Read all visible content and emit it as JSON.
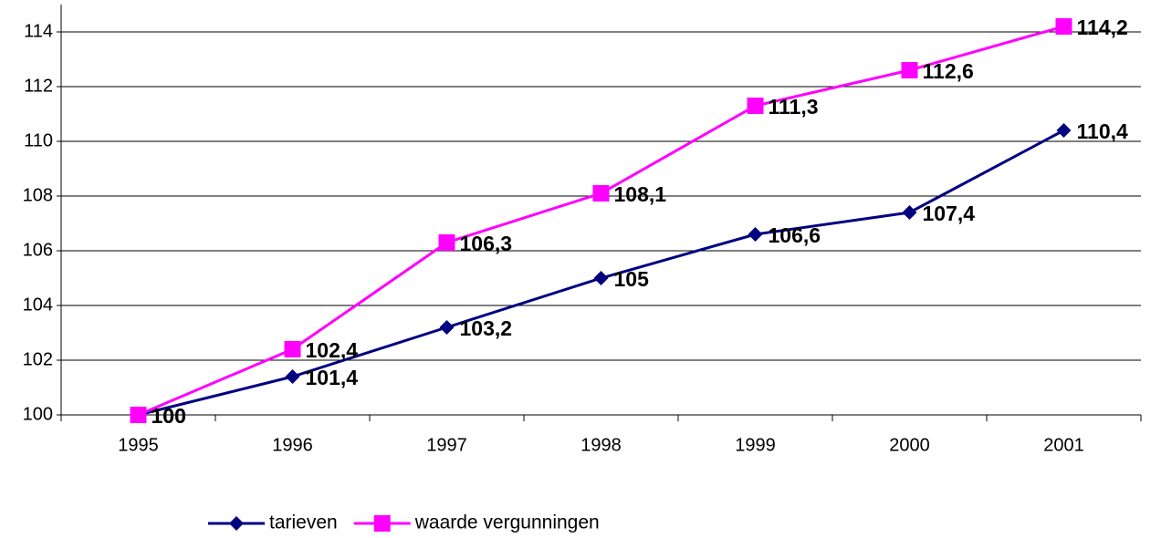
{
  "chart_data": {
    "type": "line",
    "categories": [
      "1995",
      "1996",
      "1997",
      "1998",
      "1999",
      "2000",
      "2001"
    ],
    "series": [
      {
        "name": "tarieven",
        "color": "#000080",
        "marker": "diamond",
        "values": [
          100,
          101.4,
          103.2,
          105,
          106.6,
          107.4,
          110.4
        ],
        "value_labels": [
          "100",
          "101,4",
          "103,2",
          "105",
          "106,6",
          "107,4",
          "110,4"
        ]
      },
      {
        "name": "waarde vergunningen",
        "color": "#ff00ff",
        "marker": "square",
        "values": [
          100,
          102.4,
          106.3,
          108.1,
          111.3,
          112.6,
          114.2
        ],
        "value_labels": [
          "100",
          "102,4",
          "106,3",
          "108,1",
          "111,3",
          "112,6",
          "114,2"
        ]
      }
    ],
    "ylim": [
      100,
      115
    ],
    "yticks": [
      100,
      102,
      104,
      106,
      108,
      110,
      112,
      114
    ],
    "grid": true,
    "legend": "bottom"
  }
}
